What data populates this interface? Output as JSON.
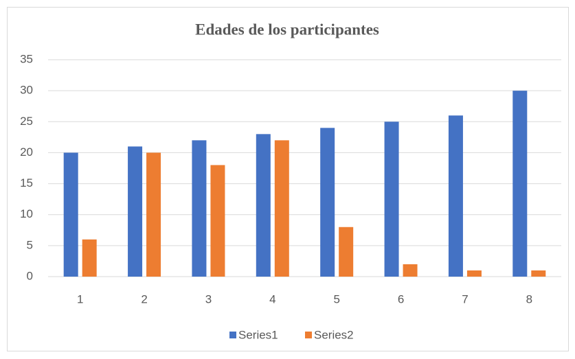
{
  "chart_data": {
    "type": "bar",
    "title": "Edades de los participantes",
    "categories": [
      "1",
      "2",
      "3",
      "4",
      "5",
      "6",
      "7",
      "8"
    ],
    "series": [
      {
        "name": "Series1",
        "color": "#4472c4",
        "values": [
          20,
          21,
          22,
          23,
          24,
          25,
          26,
          30
        ]
      },
      {
        "name": "Series2",
        "color": "#ed7d31",
        "values": [
          6,
          20,
          18,
          22,
          8,
          2,
          1,
          1
        ]
      }
    ],
    "ylim": [
      0,
      35
    ],
    "yticks": [
      0,
      5,
      10,
      15,
      20,
      25,
      30,
      35
    ],
    "grid": true,
    "legend": "bottom"
  }
}
